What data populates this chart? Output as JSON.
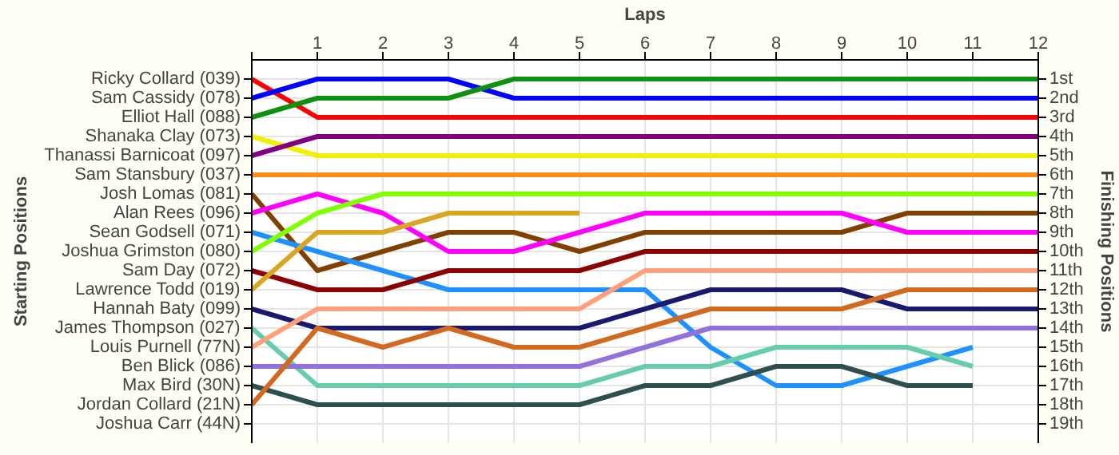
{
  "chart_data": {
    "type": "line",
    "xlabel": "Laps",
    "annotations": [
      "Starting Positions"
    ],
    "y2label": "Finishing Positions",
    "x": [
      0,
      1,
      2,
      3,
      4,
      5,
      6,
      7,
      8,
      9,
      10,
      11,
      12
    ],
    "xlim": [
      0,
      12
    ],
    "xticks": [
      {
        "value": 0,
        "label": null
      },
      1,
      2,
      3,
      4,
      5,
      6,
      7,
      8,
      9,
      10,
      11,
      12
    ],
    "y_categories": [
      "Ricky Collard (039)",
      "Sam Cassidy (078)",
      "Elliot Hall (088)",
      "Shanaka Clay (073)",
      "Thanassi Barnicoat (097)",
      "Sam Stansbury (037)",
      "Josh Lomas (081)",
      "Alan Rees (096)",
      "Sean Godsell (071)",
      "Joshua Grimston (080)",
      "Sam Day (072)",
      "Lawrence Todd (019)",
      "Hannah Baty (099)",
      "James Thompson (027)",
      "Louis Purnell (77N)",
      "Ben Blick (086)",
      "Max Bird (30N)",
      "Jordan Collard (21N)",
      "Joshua Carr (44N)"
    ],
    "y2lim": [
      20,
      0
    ],
    "y2ticks": [
      {
        "value": 1,
        "label": "1st"
      },
      {
        "value": 2,
        "label": "2nd"
      },
      {
        "value": 3,
        "label": "3rd"
      },
      {
        "value": 4,
        "label": "4th"
      },
      {
        "value": 5,
        "label": "5th"
      },
      {
        "value": 6,
        "label": "6th"
      },
      {
        "value": 7,
        "label": "7th"
      },
      {
        "value": 8,
        "label": "8th"
      },
      {
        "value": 9,
        "label": "9th"
      },
      {
        "value": 10,
        "label": "10th"
      },
      {
        "value": 11,
        "label": "11th"
      },
      {
        "value": 12,
        "label": "12th"
      },
      {
        "value": 13,
        "label": "13th"
      },
      {
        "value": 14,
        "label": "14th"
      },
      {
        "value": 15,
        "label": "15th"
      },
      {
        "value": 16,
        "label": "16th"
      },
      {
        "value": 17,
        "label": "17th"
      },
      {
        "value": 18,
        "label": "18th"
      },
      {
        "value": 19,
        "label": "19th"
      }
    ],
    "grid": true,
    "marker": "none",
    "line_style": "solid",
    "series": [
      {
        "axis": "y2",
        "color": "#ff0000",
        "values": [
          1,
          3,
          3,
          3,
          3,
          3,
          3,
          3,
          3,
          3,
          3,
          3,
          3
        ]
      },
      {
        "axis": "y2",
        "color": "#0000ff",
        "values": [
          2,
          1,
          1,
          1,
          2,
          2,
          2,
          2,
          2,
          2,
          2,
          2,
          2
        ]
      },
      {
        "axis": "y2",
        "color": "#109010",
        "values": [
          3,
          2,
          2,
          2,
          1,
          1,
          1,
          1,
          1,
          1,
          1,
          1,
          1
        ]
      },
      {
        "axis": "y2",
        "color": "#f0f000",
        "values": [
          4,
          5,
          5,
          5,
          5,
          5,
          5,
          5,
          5,
          5,
          5,
          5,
          5
        ]
      },
      {
        "axis": "y2",
        "color": "#800080",
        "values": [
          5,
          4,
          4,
          4,
          4,
          4,
          4,
          4,
          4,
          4,
          4,
          4,
          4
        ]
      },
      {
        "axis": "y2",
        "color": "#ff8c1a",
        "values": [
          6,
          6,
          6,
          6,
          6,
          6,
          6,
          6,
          6,
          6,
          6,
          6,
          6
        ]
      },
      {
        "axis": "y2",
        "color": "#804000",
        "values": [
          7,
          11,
          10,
          9,
          9,
          10,
          9,
          9,
          9,
          9,
          8,
          8,
          8
        ]
      },
      {
        "axis": "y2",
        "color": "#ff00ff",
        "values": [
          8,
          7,
          8,
          10,
          10,
          9,
          8,
          8,
          8,
          8,
          9,
          9,
          9
        ]
      },
      {
        "axis": "y2",
        "color": "#1e90ff",
        "values": [
          9,
          10,
          11,
          12,
          12,
          12,
          12,
          15,
          17,
          17,
          16,
          15,
          null
        ]
      },
      {
        "axis": "y2",
        "color": "#80ff00",
        "values": [
          10,
          8,
          7,
          7,
          7,
          7,
          7,
          7,
          7,
          7,
          7,
          7,
          7
        ]
      },
      {
        "axis": "y2",
        "color": "#8b0000",
        "values": [
          11,
          12,
          12,
          11,
          11,
          11,
          10,
          10,
          10,
          10,
          10,
          10,
          10
        ]
      },
      {
        "axis": "y2",
        "color": "#daa520",
        "values": [
          12,
          9,
          9,
          8,
          8,
          8,
          null,
          null,
          null,
          null,
          null,
          null,
          null
        ]
      },
      {
        "axis": "y2",
        "color": "#191970",
        "values": [
          13,
          14,
          14,
          14,
          14,
          14,
          13,
          12,
          12,
          12,
          13,
          13,
          13
        ]
      },
      {
        "axis": "y2",
        "color": "#66cdaa",
        "values": [
          14,
          17,
          17,
          17,
          17,
          17,
          16,
          16,
          15,
          15,
          15,
          16,
          null
        ]
      },
      {
        "axis": "y2",
        "color": "#ffa07a",
        "values": [
          15,
          13,
          13,
          13,
          13,
          13,
          11,
          11,
          11,
          11,
          11,
          11,
          11
        ]
      },
      {
        "axis": "y2",
        "color": "#9370db",
        "values": [
          16,
          16,
          16,
          16,
          16,
          16,
          15,
          14,
          14,
          14,
          14,
          14,
          14
        ]
      },
      {
        "axis": "y2",
        "color": "#2f4f4f",
        "values": [
          17,
          18,
          18,
          18,
          18,
          18,
          17,
          17,
          16,
          16,
          17,
          17,
          null
        ]
      },
      {
        "axis": "y2",
        "color": "#d2691e",
        "values": [
          18,
          14,
          15,
          14,
          15,
          15,
          14,
          13,
          13,
          13,
          12,
          12,
          12
        ]
      }
    ]
  }
}
